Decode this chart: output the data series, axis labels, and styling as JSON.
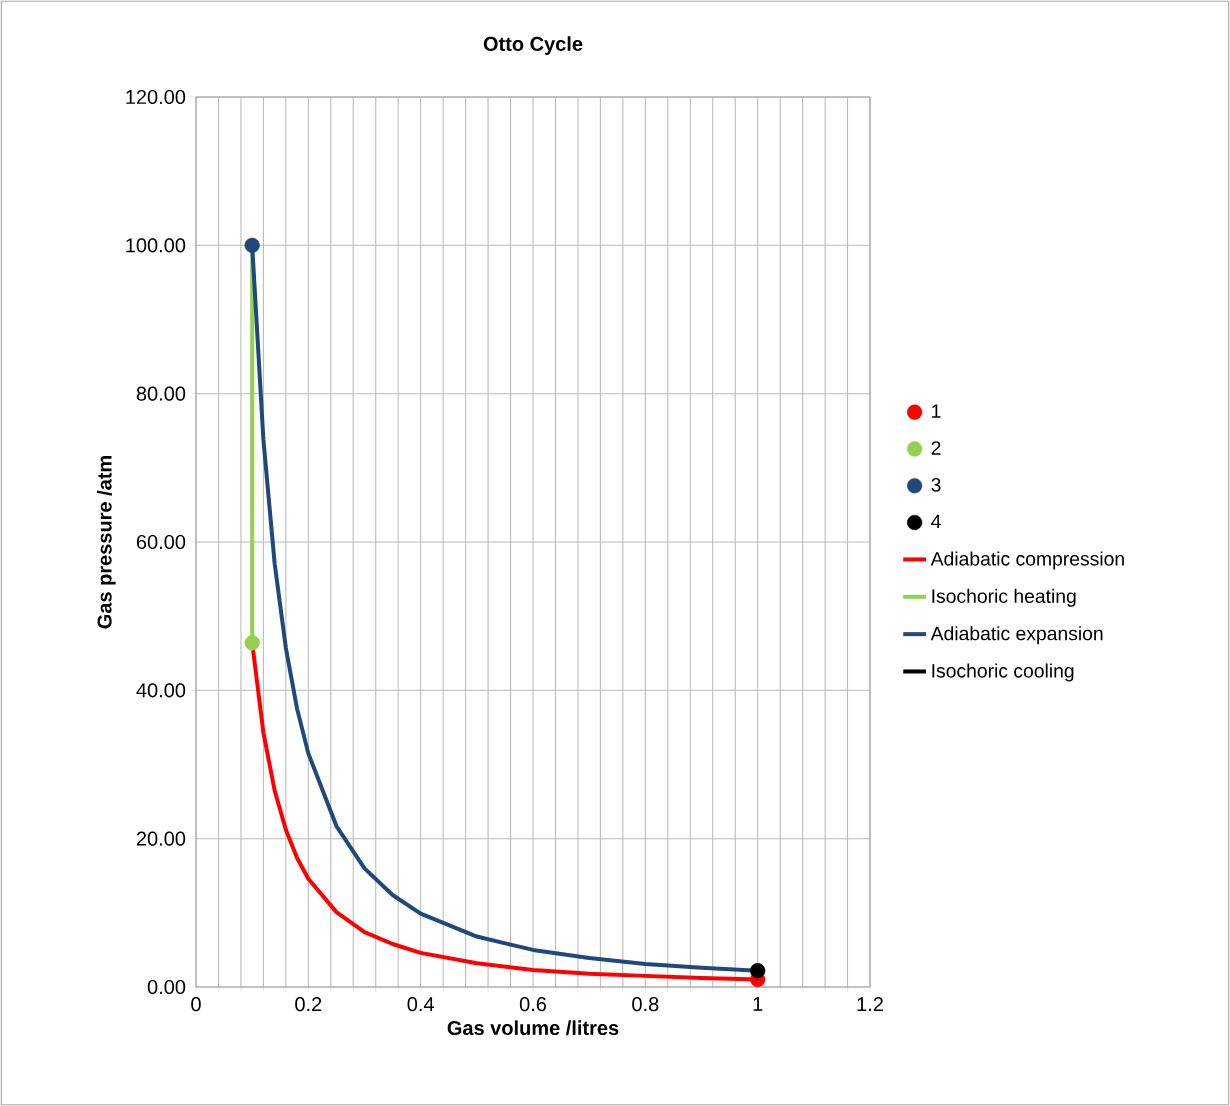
{
  "chart_data": {
    "type": "line",
    "title": "Otto Cycle",
    "xlabel": "Gas volume /litres",
    "ylabel": "Gas pressure /atm",
    "xlim": [
      0,
      1.2
    ],
    "ylim": [
      0,
      120
    ],
    "xticks": [
      0,
      {
        "value": 0.04,
        "label": null
      },
      {
        "value": 0.08,
        "label": null
      },
      {
        "value": 0.12,
        "label": null
      },
      {
        "value": 0.16,
        "label": null
      },
      0.2,
      {
        "value": 0.24,
        "label": null
      },
      {
        "value": 0.28,
        "label": null
      },
      {
        "value": 0.32,
        "label": null
      },
      {
        "value": 0.36,
        "label": null
      },
      0.4,
      {
        "value": 0.44,
        "label": null
      },
      {
        "value": 0.48,
        "label": null
      },
      {
        "value": 0.52,
        "label": null
      },
      {
        "value": 0.56,
        "label": null
      },
      0.6,
      {
        "value": 0.64,
        "label": null
      },
      {
        "value": 0.68,
        "label": null
      },
      {
        "value": 0.72,
        "label": null
      },
      {
        "value": 0.76,
        "label": null
      },
      0.8,
      {
        "value": 0.84,
        "label": null
      },
      {
        "value": 0.88,
        "label": null
      },
      {
        "value": 0.92,
        "label": null
      },
      {
        "value": 0.96,
        "label": null
      },
      1,
      {
        "value": 1.04,
        "label": null
      },
      {
        "value": 1.08,
        "label": null
      },
      {
        "value": 1.12,
        "label": null
      },
      {
        "value": 1.16,
        "label": null
      },
      1.2
    ],
    "yticks": [
      {
        "value": 0,
        "label": "0.00"
      },
      {
        "value": 20,
        "label": "20.00"
      },
      {
        "value": 40,
        "label": "40.00"
      },
      {
        "value": 60,
        "label": "60.00"
      },
      {
        "value": 80,
        "label": "80.00"
      },
      {
        "value": 100,
        "label": "100.00"
      },
      {
        "value": 120,
        "label": "120.00"
      }
    ],
    "grid": true,
    "legend": "right",
    "series": [
      {
        "name": "1",
        "type": "scatter",
        "marker": "circle",
        "color": "#ff0000",
        "x": [
          1
        ],
        "values": [
          1
        ]
      },
      {
        "name": "2",
        "type": "scatter",
        "marker": "circle",
        "color": "#92d050",
        "x": [
          0.1
        ],
        "values": [
          46.4
        ]
      },
      {
        "name": "3",
        "type": "scatter",
        "marker": "circle",
        "color": "#1f497d",
        "x": [
          0.1
        ],
        "values": [
          100
        ]
      },
      {
        "name": "4",
        "type": "scatter",
        "marker": "circle",
        "color": "#000000",
        "x": [
          1
        ],
        "values": [
          2.2
        ]
      },
      {
        "name": "Adiabatic compression",
        "color": "#ff0000",
        "x": [
          0.1,
          0.12,
          0.14,
          0.16,
          0.18,
          0.2,
          0.25,
          0.3,
          0.35,
          0.4,
          0.5,
          0.6,
          0.7,
          0.8,
          0.9,
          1.0
        ],
        "values": [
          46.4,
          34.3,
          26.5,
          21.2,
          17.4,
          14.6,
          10.1,
          7.4,
          5.8,
          4.6,
          3.2,
          2.3,
          1.8,
          1.5,
          1.2,
          1.0
        ]
      },
      {
        "name": "Isochoric heating",
        "color": "#92d050",
        "x": [
          0.1,
          0.1
        ],
        "values": [
          46.4,
          100
        ]
      },
      {
        "name": "Adiabatic expansion",
        "color": "#1f497d",
        "x": [
          0.1,
          0.12,
          0.14,
          0.16,
          0.18,
          0.2,
          0.25,
          0.3,
          0.35,
          0.4,
          0.5,
          0.6,
          0.7,
          0.8,
          0.9,
          1.0
        ],
        "values": [
          100,
          73.8,
          57.1,
          45.7,
          37.5,
          31.5,
          21.7,
          16.0,
          12.4,
          9.9,
          6.8,
          5.0,
          3.9,
          3.1,
          2.6,
          2.2
        ]
      },
      {
        "name": "Isochoric cooling",
        "color": "#000000"
      }
    ]
  }
}
